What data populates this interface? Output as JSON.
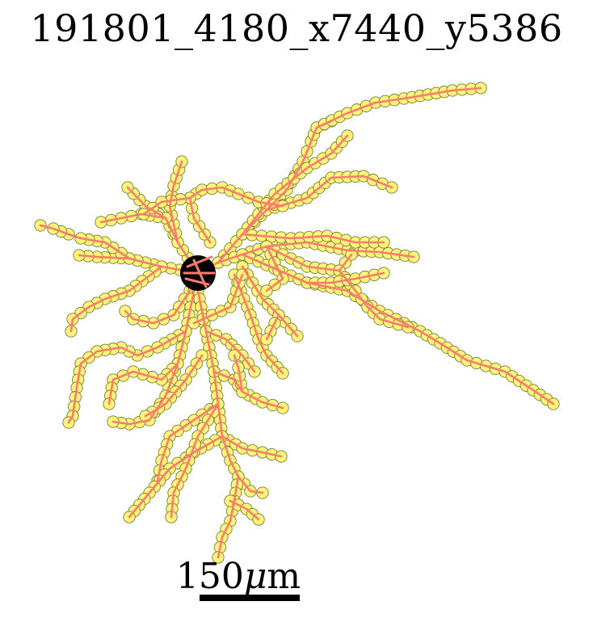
{
  "figure": {
    "title": "191801_4180_x7440_y5386",
    "scale_bar": {
      "number": "150",
      "unit_symbol": "μ",
      "unit_rest": "m"
    }
  },
  "colors": {
    "branch": "#ff7b6e",
    "node_fill": "#fdf57a",
    "node_stroke": "#7b7b3a",
    "soma": "#000000"
  }
}
